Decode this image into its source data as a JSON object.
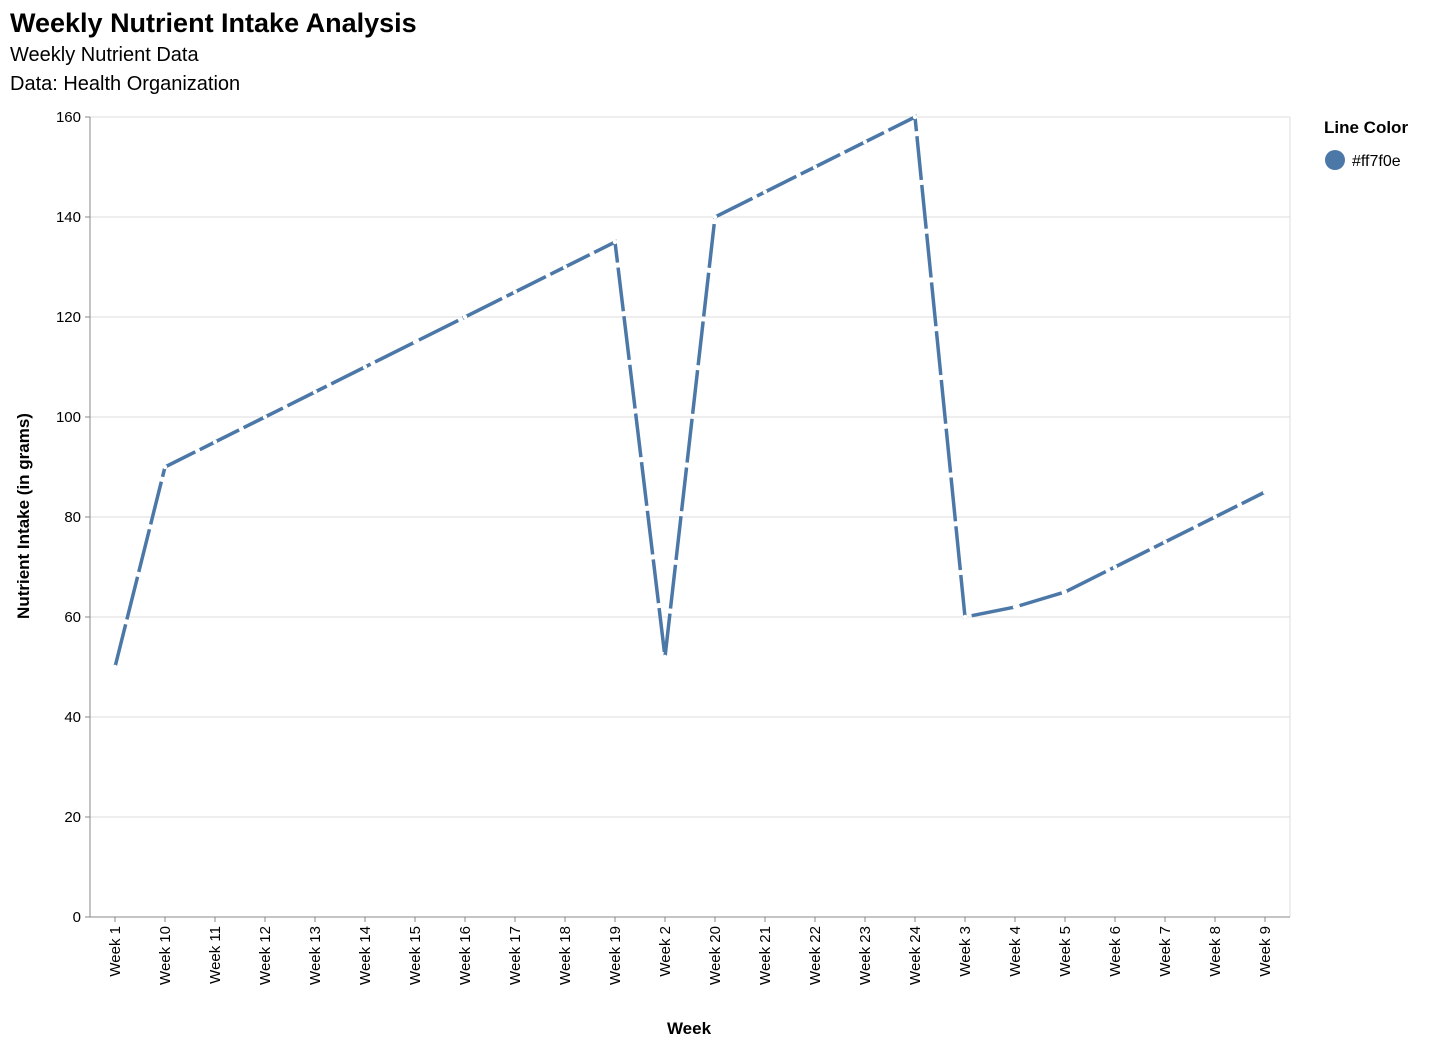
{
  "chart_data": {
    "type": "line",
    "title": "Weekly Nutrient Intake Analysis",
    "subtitle": [
      "Weekly Nutrient Data",
      "Data: Health Organization"
    ],
    "xlabel": "Week",
    "ylabel": "Nutrient Intake (in grams)",
    "ylim": [
      0,
      160
    ],
    "yticks": [
      0,
      20,
      40,
      60,
      80,
      100,
      120,
      140,
      160
    ],
    "grid": true,
    "legend": {
      "title": "Line Color",
      "placement": "top-right",
      "entries": [
        {
          "label": "#ff7f0e",
          "color": "#4c78a8"
        }
      ]
    },
    "categories": [
      "Week 1",
      "Week 10",
      "Week 11",
      "Week 12",
      "Week 13",
      "Week 14",
      "Week 15",
      "Week 16",
      "Week 17",
      "Week 18",
      "Week 19",
      "Week 2",
      "Week 20",
      "Week 21",
      "Week 22",
      "Week 23",
      "Week 24",
      "Week 3",
      "Week 4",
      "Week 5",
      "Week 6",
      "Week 7",
      "Week 8",
      "Week 9"
    ],
    "series": [
      {
        "color": "#4c78a8",
        "values": [
          50,
          90,
          95,
          100,
          105,
          110,
          115,
          120,
          125,
          130,
          135,
          52,
          140,
          145,
          150,
          155,
          160,
          60,
          62,
          65,
          70,
          75,
          80,
          85
        ]
      }
    ]
  }
}
